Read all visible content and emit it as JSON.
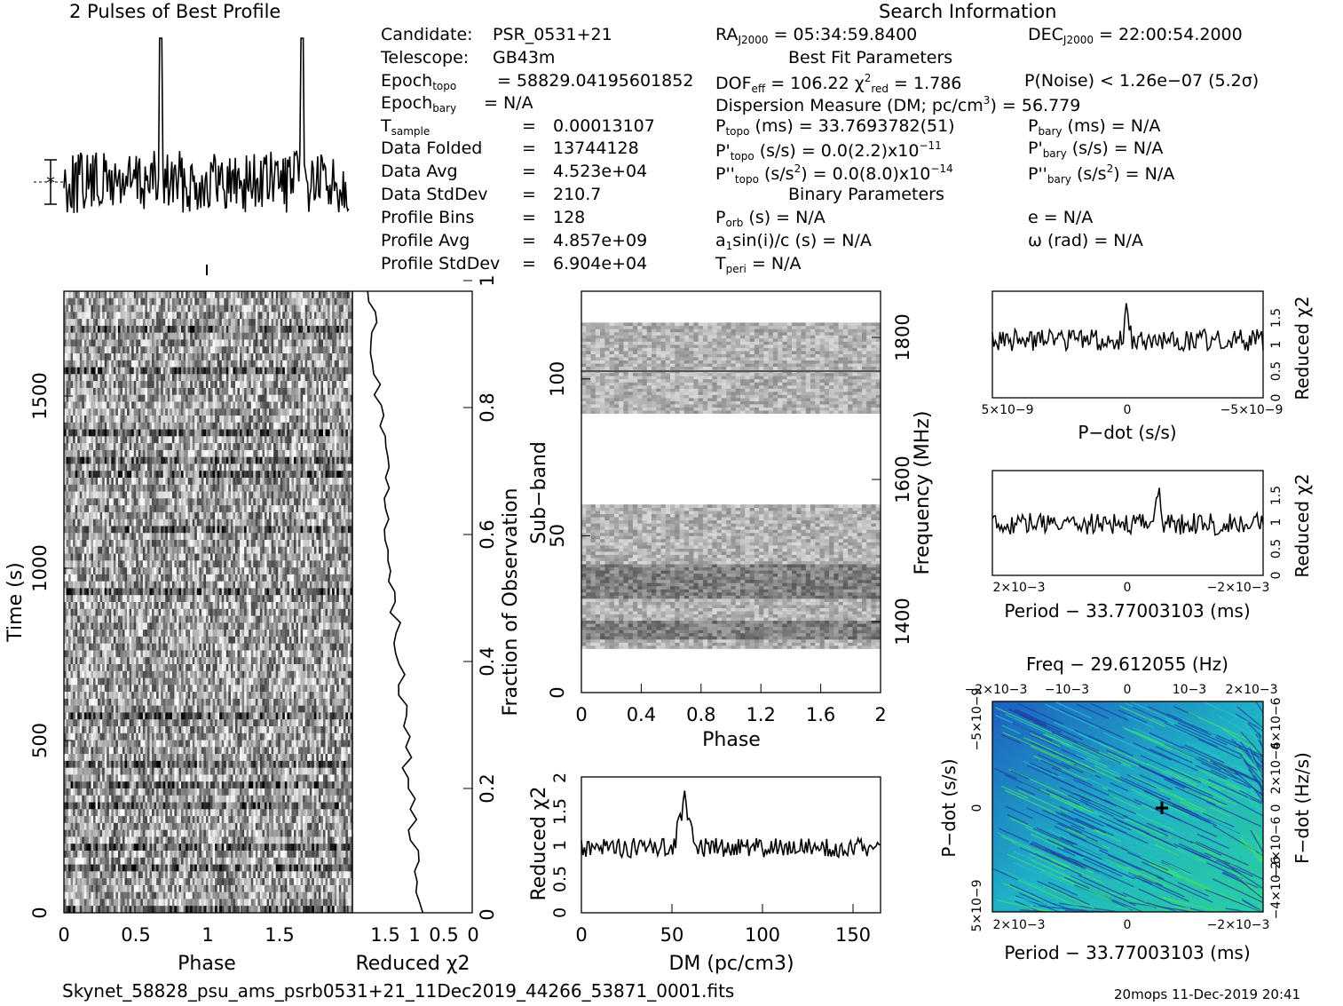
{
  "header": {
    "profile_title": "2 Pulses of Best Profile",
    "search_title": "Search Information",
    "best_fit_title": "Best Fit Parameters",
    "binary_title": "Binary Parameters"
  },
  "info_left": [
    {
      "label": "Candidate:",
      "value": "PSR_0531+21"
    },
    {
      "label": "Telescope:",
      "value": "GB43m"
    },
    {
      "label": "Epoch",
      "sub": "topo",
      "value": "= 58829.04195601852"
    },
    {
      "label": "Epoch",
      "sub": "bary",
      "value": "= N/A"
    },
    {
      "label": "T",
      "sub": "sample",
      "value": "0.00013107"
    },
    {
      "label": "Data Folded",
      "value": "13744128"
    },
    {
      "label": "Data Avg",
      "value": "4.523e+04"
    },
    {
      "label": "Data StdDev",
      "value": "210.7"
    },
    {
      "label": "Profile Bins",
      "value": "128"
    },
    {
      "label": "Profile Avg",
      "value": "4.857e+09"
    },
    {
      "label": "Profile StdDev",
      "value": "6.904e+04"
    }
  ],
  "info_mid": {
    "ra": "= 05:34:59.8400",
    "dec": "= 22:00:54.2000",
    "dof": "= 106.22",
    "chi2": "= 1.786",
    "pnoise": "P(Noise) < 1.26e−07  (5.2σ)",
    "dm": "Dispersion Measure (DM; pc/cm",
    "dm_val": ") = 56.779",
    "ptopo": "(ms) =  33.7693782(51)",
    "pbary": "(ms) = N/A",
    "pdtopo": "(s/s) = 0.0(2.2)x10",
    "pdtopo_exp": "−11",
    "pdbary": "(s/s) = N/A",
    "pddtopo": "(s/s",
    "pddtopo_val": ") = 0.0(8.0)x10",
    "pddtopo_exp": "−14",
    "pddbary": "(s/s",
    "pddbary_val": ") = N/A",
    "porb": "(s) = N/A",
    "e": "e = N/A",
    "a1": "sin(i)/c (s) = N/A",
    "omega": "ω (rad) = N/A",
    "tperi": "= N/A"
  },
  "labels": {
    "phase": "Phase",
    "time": "Time (s)",
    "reduced_chi2": "Reduced χ",
    "fraction": "Fraction of Observation",
    "subband": "Sub−band",
    "frequency": "Frequency (MHz)",
    "dm_axis": "DM (pc/cm",
    "pdot": "P−dot (s/s)",
    "period": "Period − 33.77003103 (ms)",
    "freq_title": "Freq − 29.612055 (Hz)",
    "fdot": "F−dot (Hz/s)"
  },
  "footer": {
    "filename": "Skynet_58828_psu_ams_psrb0531+21_11Dec2019_44266_53871_0001.fits",
    "stamp": "20mops 11-Dec-2019 20:41"
  },
  "colors": {
    "ink": "#000000",
    "map_low": "#1a3fa8",
    "map_mid": "#19b3c7",
    "map_high": "#3ee36b"
  },
  "chart_data": [
    {
      "type": "line",
      "title": "2 Pulses of Best Profile",
      "xlabel": "",
      "ylabel": "",
      "description_series": "pulse profile repeated twice, peaks at phase ~0.5 and ~1.5"
    },
    {
      "type": "heatmap",
      "xlabel": "Phase",
      "ylabel": "Time (s)",
      "xlim": [
        0,
        2
      ],
      "ylim": [
        0,
        1800
      ],
      "xticks": [
        "0",
        "0.5",
        "1",
        "1.5"
      ],
      "yticks": [
        "0",
        "500",
        "1000",
        "1500"
      ]
    },
    {
      "type": "line",
      "xlabel": "Reduced χ2",
      "ylabel": "Fraction of Observation",
      "xlim": [
        2,
        0
      ],
      "ylim": [
        0,
        1
      ],
      "xticks": [
        "1.5",
        "1",
        "0.5",
        "0"
      ],
      "yticks": [
        "0.2",
        "0.4",
        "0.6",
        "0.8",
        "1"
      ]
    },
    {
      "type": "heatmap",
      "xlabel": "Phase",
      "ylabel": "Sub−band",
      "y2label": "Frequency (MHz)",
      "xlim": [
        0,
        2
      ],
      "ylim": [
        0,
        128
      ],
      "xticks": [
        "0",
        "0.4",
        "0.8",
        "1.2",
        "1.6",
        "2"
      ],
      "yticks": [
        "0",
        "50",
        "100"
      ],
      "y2ticks": [
        "1400",
        "1600",
        "1800"
      ]
    },
    {
      "type": "line",
      "xlabel": "DM (pc/cm3)",
      "ylabel": "Reduced χ2",
      "xlim": [
        0,
        165
      ],
      "ylim": [
        0,
        2
      ],
      "xticks": [
        "0",
        "50",
        "100",
        "150"
      ],
      "yticks": [
        "0",
        "0.5",
        "1",
        "1.5",
        "2"
      ],
      "peak": {
        "x": 56.779,
        "y": 1.82
      }
    },
    {
      "type": "line",
      "xlabel": "P−dot (s/s)",
      "ylabel": "Reduced χ2",
      "ylim": [
        0,
        2
      ],
      "xticks": [
        "5×10−9",
        "0",
        "−5×10−9"
      ],
      "yticks": [
        "0",
        "0.5",
        "1",
        "1.5"
      ],
      "peak": {
        "x": 0,
        "y": 1.7
      }
    },
    {
      "type": "line",
      "xlabel": "Period − 33.77003103 (ms)",
      "ylabel": "Reduced χ2",
      "ylim": [
        0,
        2
      ],
      "xticks": [
        "2×10−3",
        "0",
        "−2×10−3"
      ],
      "yticks": [
        "0",
        "0.5",
        "1",
        "1.5"
      ],
      "peak": {
        "x": -0.0006,
        "y": 1.72
      }
    },
    {
      "type": "heatmap",
      "title": "Freq − 29.612055 (Hz)",
      "xlabel": "Period − 33.77003103 (ms)",
      "ylabel": "P−dot (s/s)",
      "y2label": "F−dot (Hz/s)",
      "xticks": [
        "2×10−3",
        "0",
        "−2×10−3"
      ],
      "x2ticks": [
        "−2×10−3",
        "−10−3",
        "0",
        "10−3",
        "2×10−3"
      ],
      "yticks": [
        "5×10−9",
        "0",
        "−5×10−9"
      ],
      "y2ticks": [
        "−4×10−6",
        "−2×10−6",
        "0",
        "2×10−6",
        "4×10−6"
      ],
      "marker": {
        "x": -0.0006,
        "y": 0
      }
    }
  ]
}
